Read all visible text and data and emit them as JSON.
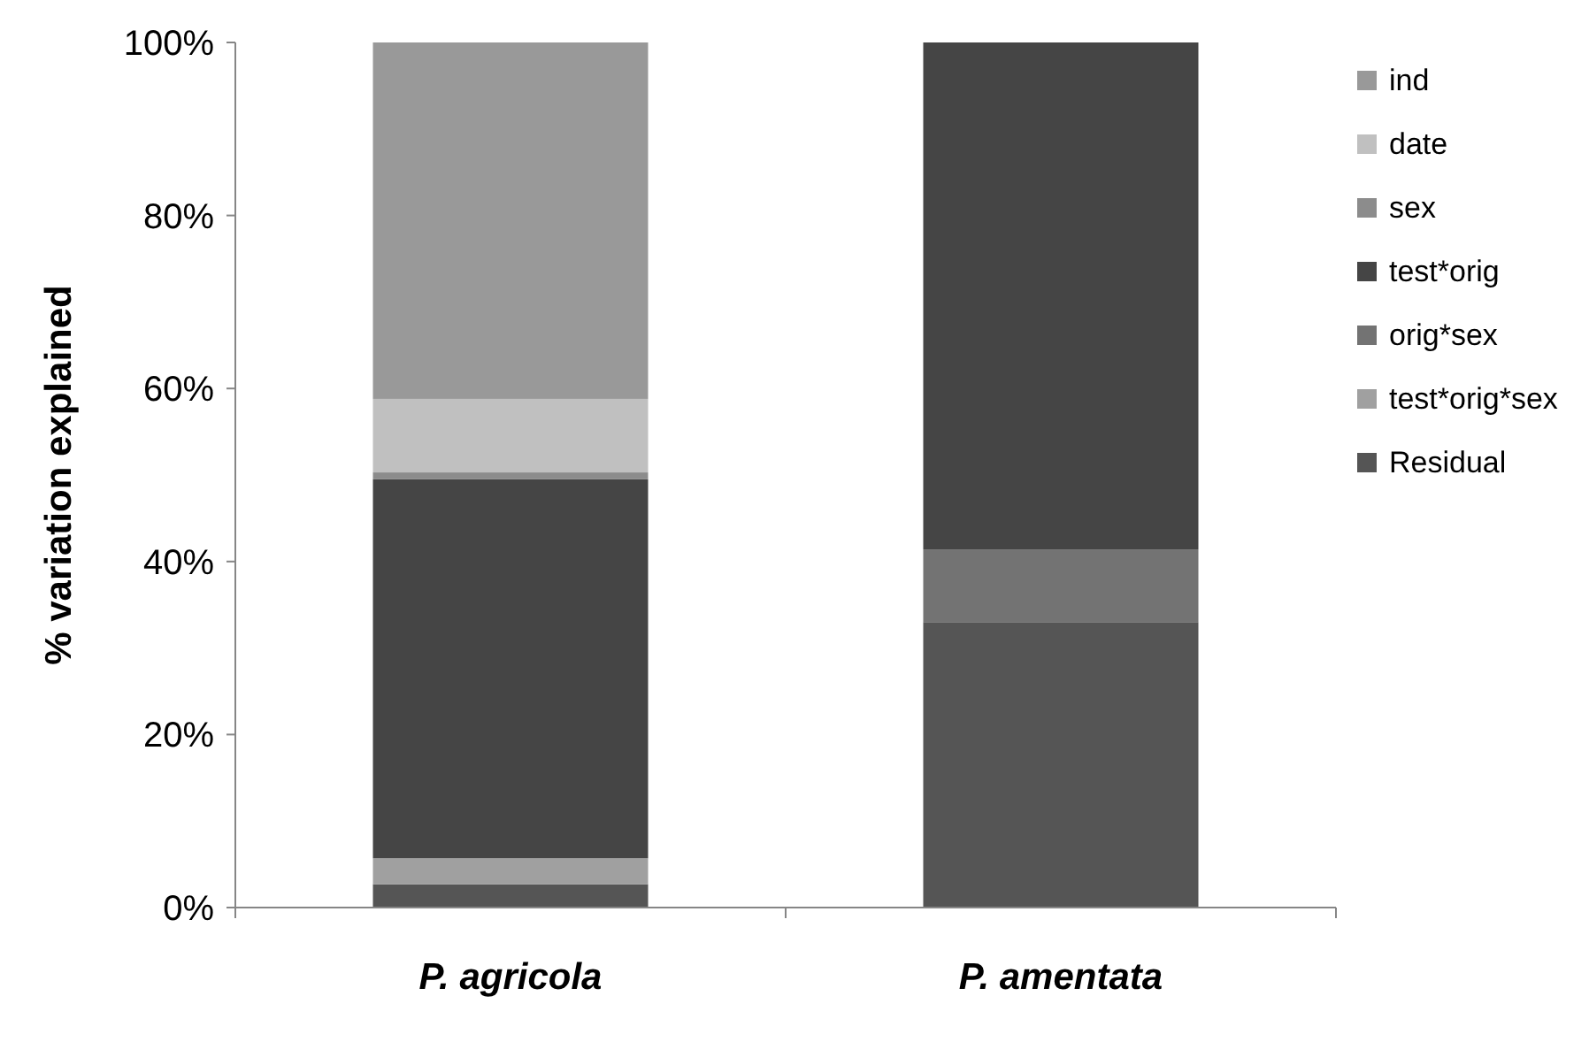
{
  "chart_data": {
    "type": "bar",
    "stacked": true,
    "ylabel": "% variation explained",
    "categories": [
      "P. agricola",
      "P. amentata"
    ],
    "series": [
      {
        "name": "Residual",
        "color": "#555555",
        "values": [
          2.7,
          33
        ]
      },
      {
        "name": "test*orig*sex",
        "color": "#a0a0a0",
        "values": [
          3,
          0
        ]
      },
      {
        "name": "orig*sex",
        "color": "#737373",
        "values": [
          0,
          8.4
        ]
      },
      {
        "name": "test*orig",
        "color": "#454545",
        "values": [
          43.8,
          58.6
        ]
      },
      {
        "name": "sex",
        "color": "#8c8c8c",
        "values": [
          0.8,
          0
        ]
      },
      {
        "name": "date",
        "color": "#c0c0c0",
        "values": [
          8.5,
          0
        ]
      },
      {
        "name": "ind",
        "color": "#999999",
        "values": [
          41.2,
          0
        ]
      }
    ],
    "ylim": [
      0,
      100
    ],
    "yticks": [
      {
        "value": 0,
        "label": "0%"
      },
      {
        "value": 20,
        "label": "20%"
      },
      {
        "value": 40,
        "label": "40%"
      },
      {
        "value": 60,
        "label": "60%"
      },
      {
        "value": 80,
        "label": "80%"
      },
      {
        "value": 100,
        "label": "100%"
      }
    ],
    "grid": false,
    "legend": "right"
  }
}
